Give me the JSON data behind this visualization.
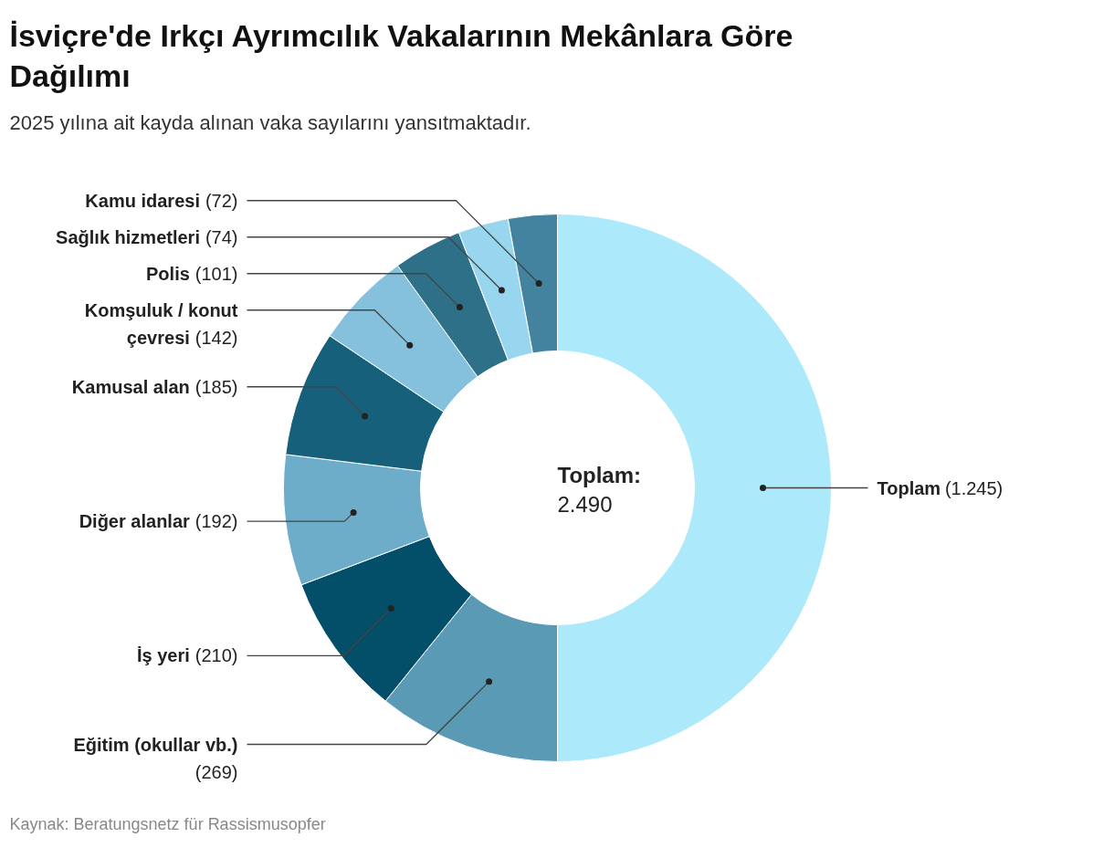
{
  "chart_data": {
    "type": "donut",
    "title": "İsviçre'de Irkçı Ayrımcılık Vakalarının Mekânlara Göre Dağılımı",
    "subtitle": "2025 yılına ait kayda alınan vaka sayılarını yansıtmaktadır.",
    "categories": [
      "Toplam",
      "Eğitim (okullar vb.)",
      "İş yeri",
      "Diğer alanlar",
      "Kamusal alan",
      "Komşuluk / konut çevresi",
      "Polis",
      "Sağlık hizmetleri",
      "Kamu idaresi"
    ],
    "values": [
      1245,
      269,
      210,
      192,
      185,
      142,
      101,
      74,
      72
    ],
    "value_labels": [
      "(1.245)",
      "(269)",
      "(210)",
      "(192)",
      "(185)",
      "(142)",
      "(101)",
      "(74)",
      "(72)"
    ],
    "colors": [
      "#abe9fb",
      "#5b9ab5",
      "#034e68",
      "#6eadca",
      "#17607b",
      "#85c0dc",
      "#2f7089",
      "#98d5ef",
      "#43839f"
    ],
    "annotations": [
      "Toplam:",
      "2.490",
      "Kaynak: Beratungsnetz für Rassismusopfer"
    ]
  }
}
